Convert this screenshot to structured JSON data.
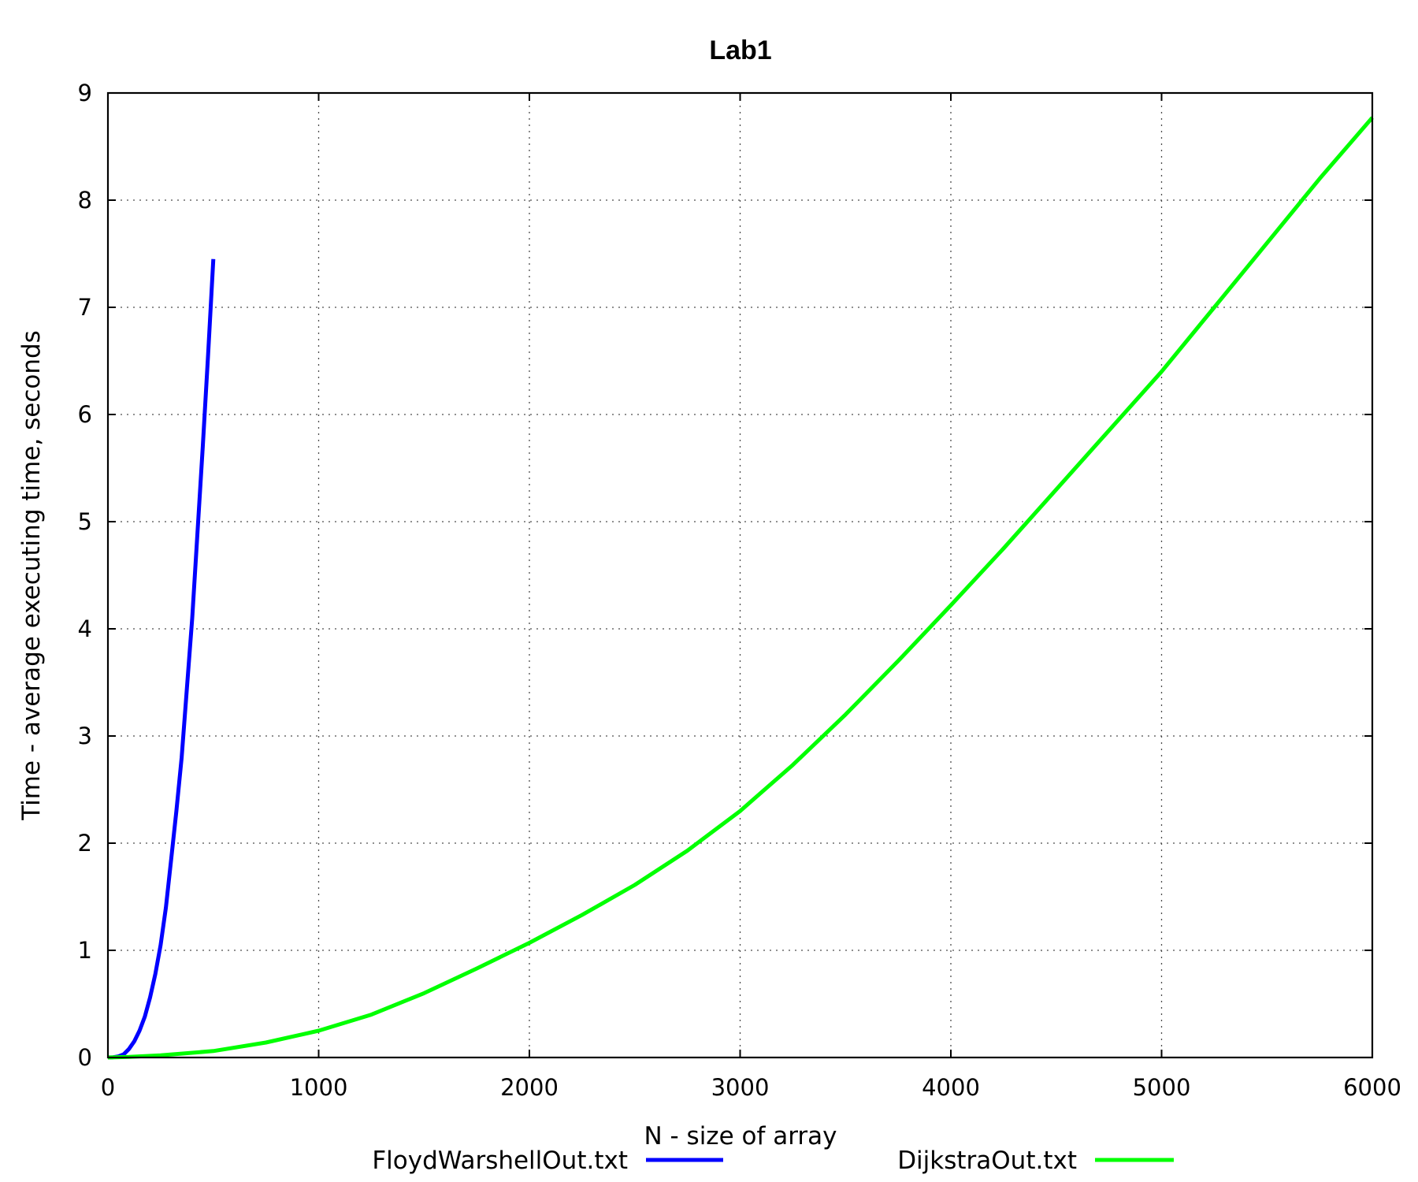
{
  "chart_data": {
    "type": "line",
    "title": "Lab1",
    "xlabel": "N - size of array",
    "ylabel": "Time - average executing time, seconds",
    "xlim": [
      0,
      6000
    ],
    "ylim": [
      0,
      9
    ],
    "x_ticks": [
      "0",
      "1000",
      "2000",
      "3000",
      "4000",
      "5000",
      "6000"
    ],
    "y_ticks": [
      "0",
      "1",
      "2",
      "3",
      "4",
      "5",
      "6",
      "7",
      "8",
      "9"
    ],
    "grid": true,
    "legend_position": "bottom",
    "series": [
      {
        "name": "FloydWarshellOut.txt",
        "color": "#0000ff",
        "points": [
          [
            0,
            0
          ],
          [
            25,
            0.002
          ],
          [
            50,
            0.01
          ],
          [
            75,
            0.03
          ],
          [
            100,
            0.08
          ],
          [
            125,
            0.15
          ],
          [
            150,
            0.25
          ],
          [
            175,
            0.38
          ],
          [
            200,
            0.56
          ],
          [
            225,
            0.78
          ],
          [
            250,
            1.05
          ],
          [
            275,
            1.4
          ],
          [
            300,
            1.85
          ],
          [
            325,
            2.3
          ],
          [
            350,
            2.8
          ],
          [
            375,
            3.45
          ],
          [
            400,
            4.1
          ],
          [
            425,
            4.9
          ],
          [
            450,
            5.7
          ],
          [
            475,
            6.55
          ],
          [
            500,
            7.45
          ]
        ]
      },
      {
        "name": "DijkstraOut.txt",
        "color": "#00ff00",
        "points": [
          [
            0,
            0
          ],
          [
            100,
            0.005
          ],
          [
            250,
            0.02
          ],
          [
            500,
            0.06
          ],
          [
            750,
            0.14
          ],
          [
            1000,
            0.25
          ],
          [
            1250,
            0.4
          ],
          [
            1500,
            0.6
          ],
          [
            1750,
            0.83
          ],
          [
            2000,
            1.07
          ],
          [
            2250,
            1.33
          ],
          [
            2500,
            1.61
          ],
          [
            2750,
            1.93
          ],
          [
            3000,
            2.3
          ],
          [
            3250,
            2.73
          ],
          [
            3500,
            3.2
          ],
          [
            3750,
            3.7
          ],
          [
            4000,
            4.22
          ],
          [
            4250,
            4.75
          ],
          [
            4500,
            5.3
          ],
          [
            4750,
            5.85
          ],
          [
            5000,
            6.4
          ],
          [
            5250,
            7.0
          ],
          [
            5500,
            7.6
          ],
          [
            5750,
            8.2
          ],
          [
            6000,
            8.77
          ]
        ]
      }
    ]
  }
}
